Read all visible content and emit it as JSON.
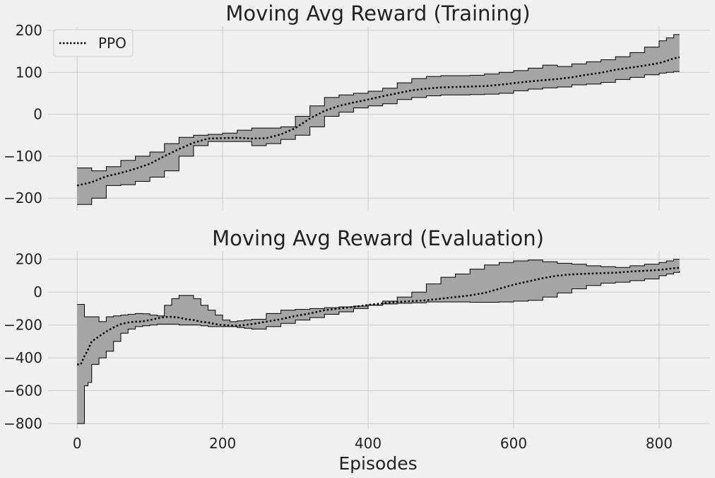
{
  "figure": {
    "background": "#f0f0f0",
    "xlabel": "Episodes"
  },
  "chart_data": [
    {
      "type": "area",
      "title": "Moving Avg Reward (Training)",
      "xlabel": "",
      "ylabel": "",
      "xlim": [
        -40,
        870
      ],
      "ylim": [
        -230,
        210
      ],
      "xticks": [
        0,
        200,
        400,
        600,
        800
      ],
      "yticks": [
        -200,
        -100,
        0,
        100,
        200
      ],
      "ytick_labels": [
        "−200",
        "−100",
        "0",
        "100",
        "200"
      ],
      "show_xtick_labels": false,
      "grid": true,
      "legend": {
        "placement": "top-left",
        "entries": [
          "PPO"
        ]
      },
      "series": [
        {
          "name": "PPO",
          "style": "dotted",
          "color": "#000000",
          "band_color": "#a5a5a5",
          "x": [
            0,
            20,
            40,
            60,
            80,
            100,
            120,
            140,
            160,
            180,
            200,
            220,
            240,
            260,
            280,
            300,
            320,
            340,
            360,
            380,
            400,
            420,
            440,
            460,
            480,
            500,
            520,
            540,
            560,
            580,
            600,
            620,
            640,
            660,
            680,
            700,
            720,
            740,
            760,
            780,
            800,
            810,
            820,
            828
          ],
          "mean": [
            -170,
            -162,
            -148,
            -140,
            -130,
            -118,
            -100,
            -83,
            -68,
            -58,
            -57,
            -56,
            -58,
            -57,
            -48,
            -33,
            -10,
            8,
            20,
            28,
            35,
            43,
            50,
            57,
            61,
            64,
            65,
            66,
            67,
            70,
            74,
            78,
            81,
            84,
            88,
            94,
            99,
            106,
            111,
            116,
            122,
            127,
            133,
            136
          ],
          "lower": [
            -215,
            -200,
            -170,
            -168,
            -160,
            -150,
            -135,
            -100,
            -75,
            -65,
            -65,
            -65,
            -75,
            -70,
            -60,
            -50,
            -30,
            -5,
            5,
            15,
            20,
            25,
            35,
            40,
            44,
            46,
            46,
            47,
            48,
            50,
            56,
            60,
            63,
            65,
            70,
            72,
            76,
            83,
            88,
            94,
            98,
            100,
            102,
            102
          ],
          "upper": [
            -128,
            -135,
            -125,
            -110,
            -100,
            -90,
            -70,
            -55,
            -50,
            -48,
            -45,
            -38,
            -33,
            -33,
            -30,
            -5,
            20,
            40,
            46,
            50,
            55,
            62,
            75,
            85,
            90,
            92,
            92,
            93,
            96,
            100,
            104,
            110,
            117,
            114,
            120,
            125,
            130,
            137,
            147,
            160,
            175,
            182,
            190,
            190
          ]
        }
      ]
    },
    {
      "type": "area",
      "title": "Moving Avg Reward (Evaluation)",
      "xlabel": "Episodes",
      "ylabel": "",
      "xlim": [
        -40,
        870
      ],
      "ylim": [
        -830,
        250
      ],
      "xticks": [
        0,
        200,
        400,
        600,
        800
      ],
      "xtick_labels": [
        "0",
        "200",
        "400",
        "600",
        "800"
      ],
      "yticks": [
        -800,
        -600,
        -400,
        -200,
        0,
        200
      ],
      "ytick_labels": [
        "−800",
        "−600",
        "−400",
        "−200",
        "0",
        "200"
      ],
      "show_xtick_labels": true,
      "grid": true,
      "series": [
        {
          "name": "PPO",
          "style": "dotted",
          "color": "#000000",
          "band_color": "#a5a5a5",
          "x": [
            0,
            5,
            10,
            15,
            20,
            30,
            40,
            50,
            60,
            70,
            80,
            90,
            100,
            110,
            120,
            130,
            140,
            150,
            160,
            170,
            180,
            190,
            200,
            210,
            220,
            230,
            240,
            260,
            280,
            300,
            320,
            340,
            360,
            380,
            400,
            420,
            440,
            460,
            480,
            500,
            520,
            540,
            560,
            580,
            600,
            620,
            640,
            660,
            680,
            700,
            720,
            740,
            760,
            780,
            800,
            810,
            820,
            828
          ],
          "mean": [
            -440,
            -440,
            -390,
            -350,
            -300,
            -270,
            -240,
            -215,
            -195,
            -185,
            -180,
            -178,
            -170,
            -160,
            -152,
            -150,
            -155,
            -165,
            -170,
            -180,
            -185,
            -195,
            -200,
            -203,
            -205,
            -200,
            -195,
            -180,
            -165,
            -145,
            -130,
            -110,
            -100,
            -90,
            -78,
            -68,
            -60,
            -55,
            -50,
            -40,
            -30,
            -20,
            -5,
            20,
            45,
            65,
            85,
            100,
            108,
            112,
            115,
            118,
            125,
            130,
            135,
            140,
            145,
            148
          ],
          "lower": [
            -800,
            -800,
            -570,
            -550,
            -440,
            -400,
            -360,
            -300,
            -250,
            -225,
            -210,
            -205,
            -200,
            -195,
            -195,
            -195,
            -200,
            -200,
            -200,
            -205,
            -210,
            -210,
            -210,
            -210,
            -215,
            -220,
            -225,
            -210,
            -190,
            -170,
            -155,
            -135,
            -120,
            -100,
            -80,
            -72,
            -68,
            -65,
            -60,
            -60,
            -60,
            -62,
            -62,
            -60,
            -55,
            -50,
            -30,
            -5,
            20,
            40,
            55,
            60,
            70,
            80,
            100,
            110,
            120,
            130
          ],
          "upper": [
            -75,
            -75,
            -150,
            -150,
            -150,
            -180,
            -150,
            -145,
            -140,
            -135,
            -130,
            -132,
            -140,
            -145,
            -80,
            -40,
            -20,
            -20,
            -40,
            -80,
            -110,
            -140,
            -170,
            -180,
            -175,
            -170,
            -165,
            -130,
            -110,
            -105,
            -100,
            -95,
            -90,
            -85,
            -78,
            -55,
            -30,
            0,
            50,
            90,
            110,
            140,
            165,
            180,
            190,
            195,
            185,
            175,
            170,
            160,
            155,
            150,
            160,
            170,
            180,
            190,
            200,
            200
          ]
        }
      ]
    }
  ]
}
